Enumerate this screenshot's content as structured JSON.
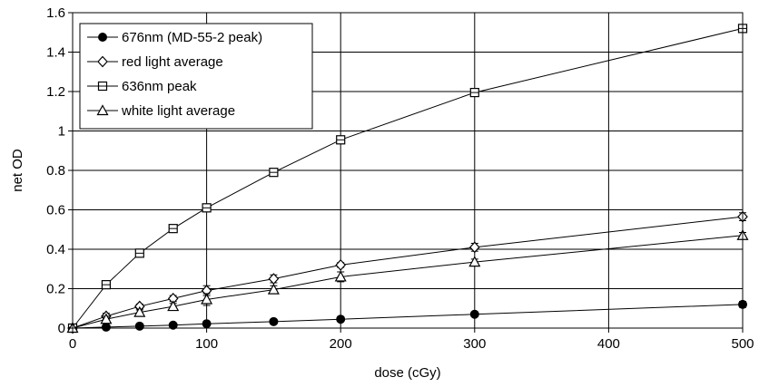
{
  "chart_data": {
    "type": "line",
    "xlabel": "dose (cGy)",
    "ylabel": "net OD",
    "xlim": [
      0,
      500
    ],
    "ylim": [
      0,
      1.6
    ],
    "xticks": [
      0,
      100,
      200,
      300,
      400,
      500
    ],
    "yticks": [
      0,
      0.2,
      0.4,
      0.6,
      0.8,
      1,
      1.2,
      1.4,
      1.6
    ],
    "ytick_labels": [
      "0",
      "0.2",
      "0.4",
      "0.6",
      "0.8",
      "1",
      "1.2",
      "1.4",
      "1.6"
    ],
    "grid": true,
    "legend_position": "top-left",
    "series": [
      {
        "name": "676nm (MD-55-2 peak)",
        "marker": "filled-circle",
        "x": [
          0,
          25,
          50,
          75,
          100,
          150,
          200,
          300,
          500
        ],
        "y": [
          0,
          0.005,
          0.01,
          0.015,
          0.022,
          0.033,
          0.045,
          0.07,
          0.12
        ],
        "err": [
          0.004,
          0.005,
          0.006,
          0.006,
          0.007,
          0.008,
          0.009,
          0.012,
          0.015
        ]
      },
      {
        "name": "red light average",
        "marker": "open-diamond",
        "x": [
          0,
          25,
          50,
          75,
          100,
          150,
          200,
          300,
          500
        ],
        "y": [
          0,
          0.06,
          0.11,
          0.15,
          0.19,
          0.25,
          0.32,
          0.41,
          0.565
        ],
        "err": [
          0.004,
          0.015,
          0.012,
          0.015,
          0.025,
          0.02,
          0.012,
          0.02,
          0.02
        ]
      },
      {
        "name": "636nm peak",
        "marker": "open-square",
        "x": [
          0,
          25,
          50,
          75,
          100,
          150,
          200,
          300,
          500
        ],
        "y": [
          0,
          0.22,
          0.38,
          0.505,
          0.61,
          0.79,
          0.955,
          1.195,
          1.52
        ],
        "err": [
          0.004,
          0.02,
          0.015,
          0.015,
          0.02,
          0.015,
          0.02,
          0.02,
          0.02
        ]
      },
      {
        "name": "white light average",
        "marker": "open-triangle",
        "x": [
          0,
          25,
          50,
          75,
          100,
          150,
          200,
          300,
          500
        ],
        "y": [
          0,
          0.045,
          0.08,
          0.11,
          0.145,
          0.195,
          0.26,
          0.335,
          0.47
        ],
        "err": [
          0.004,
          0.015,
          0.012,
          0.015,
          0.03,
          0.02,
          0.025,
          0.015,
          0.015
        ]
      }
    ]
  }
}
